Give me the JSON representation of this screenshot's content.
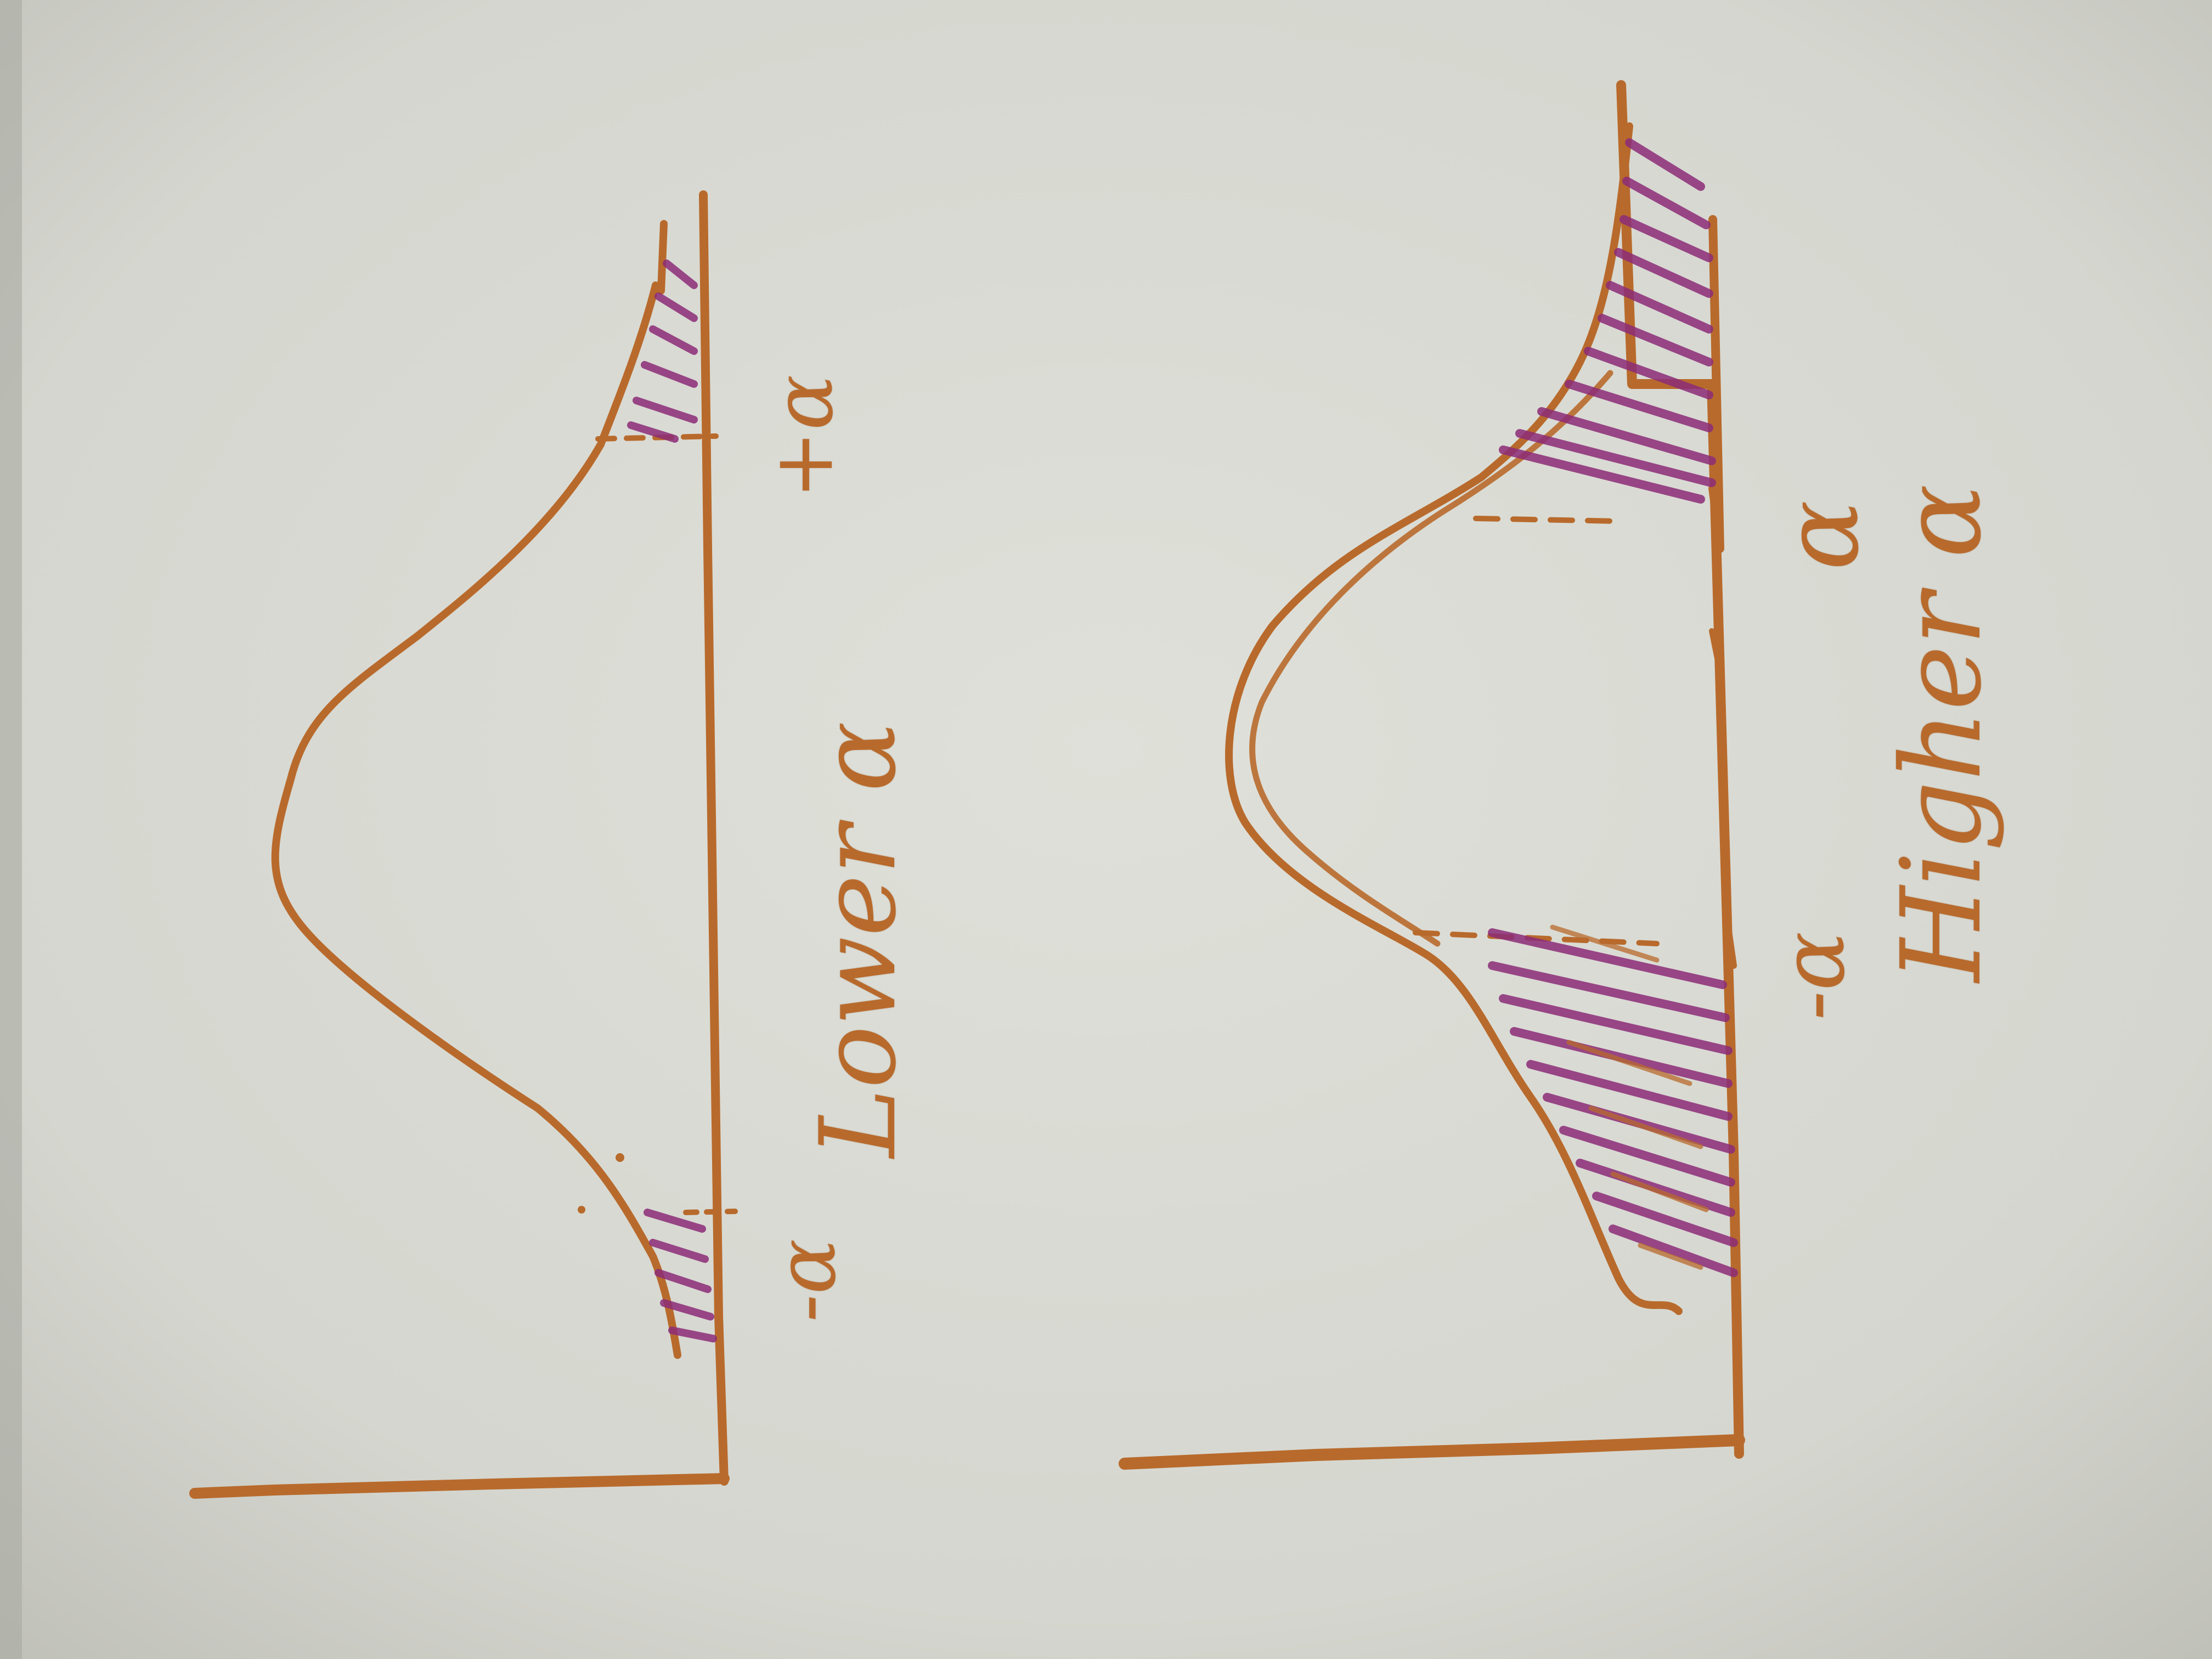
{
  "colors": {
    "background": "#c9cac2",
    "paper": "#dcddd6",
    "ink_orange": "#b86a2c",
    "ink_purple": "#8c2c78"
  },
  "diagrams": [
    {
      "id": "lower",
      "labels": {
        "left_threshold": "-α",
        "right_threshold": "+α",
        "caption": "Lower α"
      }
    },
    {
      "id": "higher",
      "labels": {
        "left_threshold": "-α",
        "right_threshold": "α",
        "caption": "Higher α"
      }
    }
  ]
}
